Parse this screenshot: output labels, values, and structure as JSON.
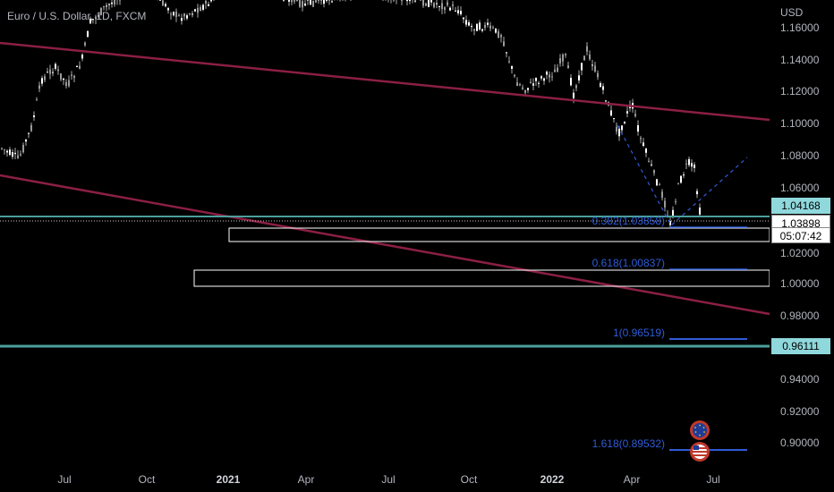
{
  "symbol": {
    "title": "Euro / U.S. Dollar, 1D, FXCM"
  },
  "price_axis": {
    "currency": "USD",
    "ticks": [
      "1.16000",
      "1.14000",
      "1.12000",
      "1.10000",
      "1.08000",
      "1.06000",
      "1.02000",
      "1.00000",
      "0.98000",
      "0.94000",
      "0.92000",
      "0.90000"
    ]
  },
  "time_axis": {
    "labels": [
      {
        "text": "Jul",
        "bold": false
      },
      {
        "text": "Oct",
        "bold": false
      },
      {
        "text": "2021",
        "bold": true
      },
      {
        "text": "Apr",
        "bold": false
      },
      {
        "text": "Jul",
        "bold": false
      },
      {
        "text": "Oct",
        "bold": false
      },
      {
        "text": "2022",
        "bold": true
      },
      {
        "text": "Apr",
        "bold": false
      },
      {
        "text": "Jul",
        "bold": false
      }
    ]
  },
  "price_badges": {
    "level_upper": "1.04168",
    "current_price": "1.03898",
    "countdown": "05:07:42",
    "level_lower": "0.96111"
  },
  "fib_levels": [
    {
      "label": "0.382(1.03858)"
    },
    {
      "label": "0.618(1.00837)"
    },
    {
      "label": "1(0.96519)"
    },
    {
      "label": "1.618(0.89532)"
    }
  ],
  "colors": {
    "background": "#000000",
    "trendline": "#8b1f44",
    "horizontal_level": "#4a9f9c",
    "fib": "#2f5bd7",
    "candle_up": "#e0e0e0",
    "candle_down": "#e0e0e0",
    "zone_border": "#ffffff",
    "badge_teal": "#8fd8dc"
  },
  "event_icons": [
    {
      "name": "eu-flag-icon"
    },
    {
      "name": "us-flag-icon"
    }
  ]
}
